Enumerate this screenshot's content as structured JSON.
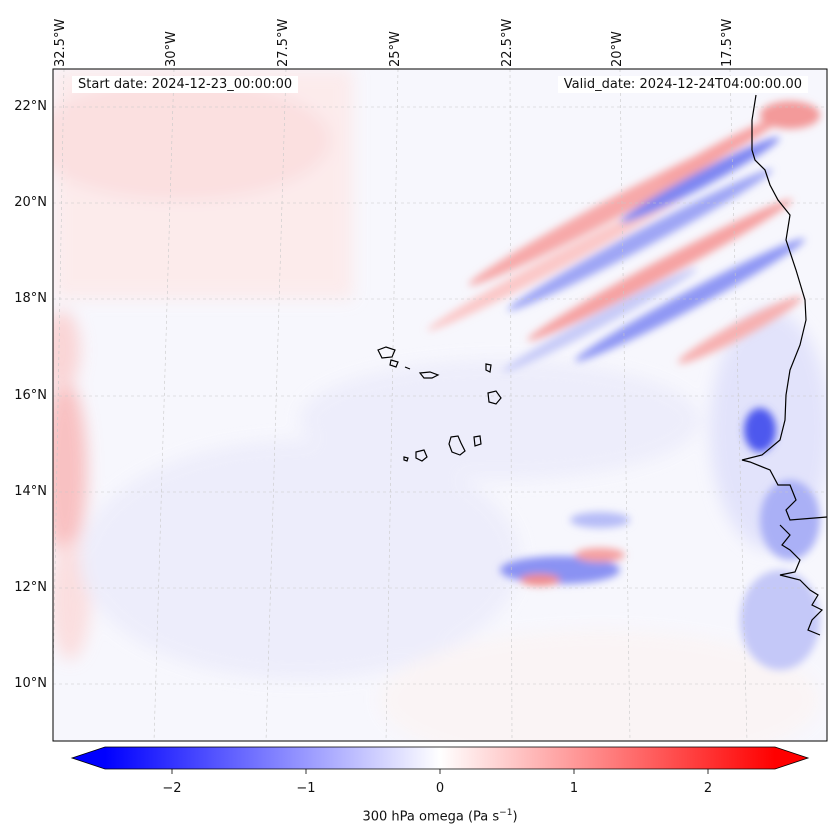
{
  "map": {
    "start_date": "Start date: 2024-12-23_00:00:00",
    "valid_date": "Valid_date: 2024-12-24T04:00:00.00",
    "lon_labels": [
      "32.5°W",
      "30°W",
      "27.5°W",
      "25°W",
      "22.5°W",
      "20°W",
      "17.5°W"
    ],
    "lat_labels": [
      "22°N",
      "20°N",
      "18°N",
      "16°N",
      "14°N",
      "12°N",
      "10°N"
    ],
    "extent": {
      "lon_min": -33.0,
      "lon_max": -15.8,
      "lat_min": 8.9,
      "lat_max": 22.8
    },
    "gridlines": true,
    "field": "300 hPa omega",
    "colormap": "bwr",
    "colors": {
      "negative": "#0000ff",
      "zero": "#ffffff",
      "positive": "#ff0000",
      "coastline": "#000000"
    }
  },
  "colorbar": {
    "ticks": [
      "−2",
      "−1",
      "0",
      "1",
      "2"
    ],
    "tick_values": [
      -2,
      -1,
      0,
      1,
      2
    ],
    "range": [
      -2.5,
      2.5
    ],
    "label": "300 hPa omega (Pa s",
    "label_sup": "−1",
    "label_close": ")",
    "extend": "both"
  }
}
